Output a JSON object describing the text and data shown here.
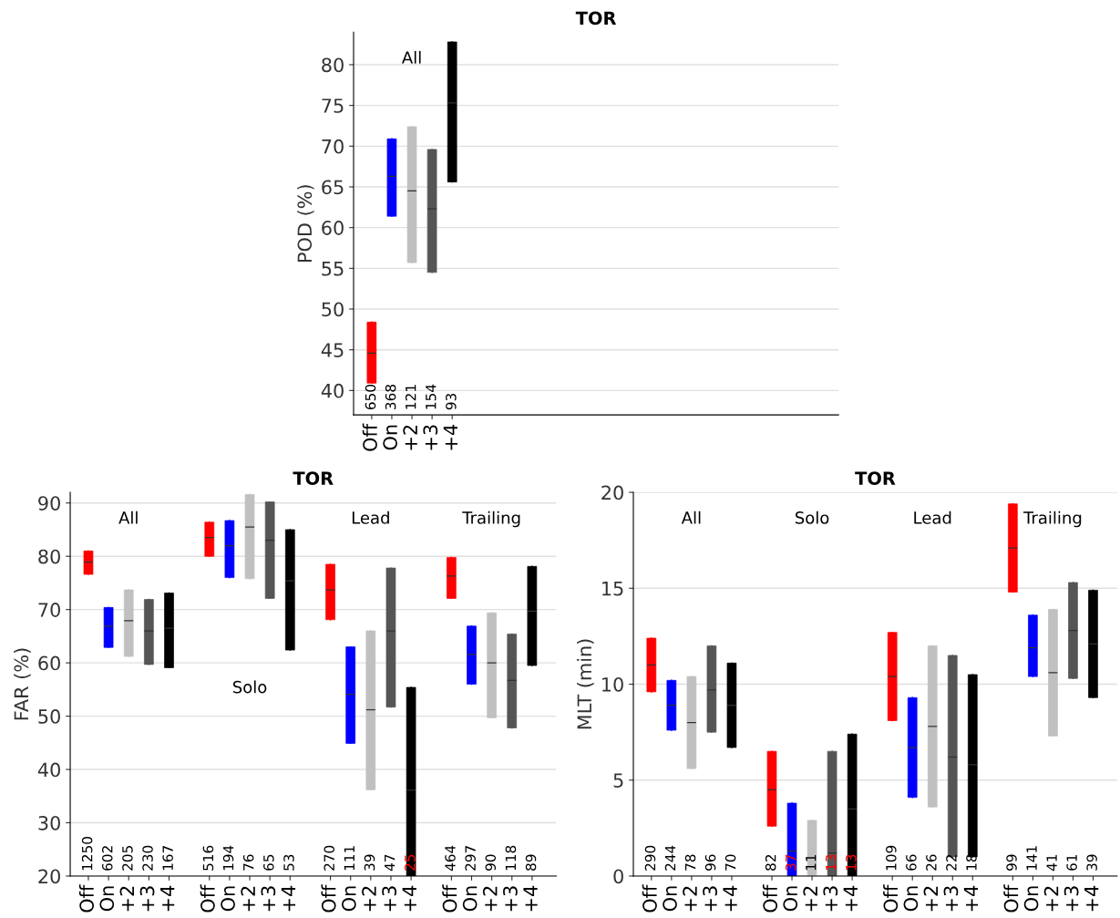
{
  "chart_data": [
    {
      "type": "box",
      "title": "TOR",
      "ylabel": "POD (%)",
      "ylim": [
        37,
        84
      ],
      "yticks": [
        40,
        45,
        50,
        55,
        60,
        65,
        70,
        75,
        80
      ],
      "grid": "y",
      "categories": [
        "Off",
        "On",
        "+2",
        "+3",
        "+4",
        null,
        null,
        null,
        null,
        null,
        null,
        null,
        null,
        null,
        null,
        null,
        null,
        null,
        null,
        null,
        null,
        null,
        null
      ],
      "colors": [
        "#ff0000",
        "#0000ff",
        "#c0c0c0",
        "#555555",
        "#000000",
        null,
        null,
        null,
        null,
        null,
        null,
        null,
        null,
        null,
        null,
        null,
        null,
        null,
        null,
        null,
        null,
        null,
        null
      ],
      "value_labels": [
        "650",
        "368",
        "121",
        "154",
        "93",
        null,
        null,
        null,
        null,
        null,
        null,
        null,
        null,
        null,
        null,
        null,
        null,
        null,
        null,
        null,
        null,
        null,
        null
      ],
      "annotations": [
        "All"
      ],
      "boxes": [
        {
          "low": 40.9,
          "q1": 40.9,
          "median": 44.6,
          "q3": 48.4,
          "high": 48.4
        },
        {
          "low": 61.4,
          "q1": 61.4,
          "median": 66.3,
          "q3": 70.9,
          "high": 70.9
        },
        {
          "low": 55.7,
          "q1": 55.7,
          "median": 64.5,
          "q3": 72.4,
          "high": 72.4
        },
        {
          "low": 54.5,
          "q1": 54.5,
          "median": 62.3,
          "q3": 69.6,
          "high": 69.6
        },
        {
          "low": 65.6,
          "q1": 65.6,
          "median": 75.3,
          "q3": 82.8,
          "high": 82.8
        },
        null,
        null,
        null,
        null,
        null,
        null,
        null,
        null,
        null,
        null,
        null,
        null,
        null,
        null,
        null,
        null,
        null,
        null
      ]
    },
    {
      "type": "box",
      "title": "TOR",
      "ylabel": "FAR (%)",
      "ylim": [
        20,
        92
      ],
      "yticks": [
        20,
        30,
        40,
        50,
        60,
        70,
        80,
        90
      ],
      "grid": "y",
      "categories": [
        "Off",
        "On",
        "+2",
        "+3",
        "+4",
        null,
        "Off",
        "On",
        "+2",
        "+3",
        "+4",
        null,
        "Off",
        "On",
        "+2",
        "+3",
        "+4",
        null,
        "Off",
        "On",
        "+2",
        "+3",
        "+4"
      ],
      "colors": [
        "#ff0000",
        "#0000ff",
        "#c0c0c0",
        "#555555",
        "#000000",
        null,
        "#ff0000",
        "#0000ff",
        "#c0c0c0",
        "#555555",
        "#000000",
        null,
        "#ff0000",
        "#0000ff",
        "#c0c0c0",
        "#555555",
        "#000000",
        null,
        "#ff0000",
        "#0000ff",
        "#c0c0c0",
        "#555555",
        "#000000"
      ],
      "value_labels": [
        "1250",
        "602",
        "205",
        "230",
        "167",
        null,
        "516",
        "194",
        "76",
        "65",
        "53",
        null,
        "270",
        "111",
        "39",
        "47",
        "25",
        null,
        "464",
        "297",
        "90",
        "118",
        "89"
      ],
      "annotations": [
        "All",
        "Solo",
        "Lead",
        "Trailing"
      ],
      "boxes": [
        {
          "low": 76.6,
          "q1": 76.6,
          "median": 78.9,
          "q3": 81.0,
          "high": 81.0
        },
        {
          "low": 62.9,
          "q1": 62.9,
          "median": 66.9,
          "q3": 70.4,
          "high": 70.4
        },
        {
          "low": 61.2,
          "q1": 61.2,
          "median": 67.9,
          "q3": 73.7,
          "high": 73.7
        },
        {
          "low": 59.7,
          "q1": 59.7,
          "median": 66.0,
          "q3": 71.9,
          "high": 71.9
        },
        {
          "low": 59.1,
          "q1": 59.1,
          "median": 66.5,
          "q3": 73.1,
          "high": 73.1
        },
        null,
        {
          "low": 80.0,
          "q1": 80.0,
          "median": 83.5,
          "q3": 86.4,
          "high": 86.4
        },
        {
          "low": 76.0,
          "q1": 76.0,
          "median": 82.0,
          "q3": 86.7,
          "high": 86.7
        },
        {
          "low": 75.8,
          "q1": 75.8,
          "median": 85.5,
          "q3": 91.6,
          "high": 91.6
        },
        {
          "low": 72.1,
          "q1": 72.1,
          "median": 83.0,
          "q3": 90.2,
          "high": 90.2
        },
        {
          "low": 62.4,
          "q1": 62.4,
          "median": 75.4,
          "q3": 85.0,
          "high": 85.0
        },
        null,
        {
          "low": 68.1,
          "q1": 68.1,
          "median": 73.7,
          "q3": 78.5,
          "high": 78.5
        },
        {
          "low": 44.9,
          "q1": 44.9,
          "median": 54.1,
          "q3": 63.0,
          "high": 63.0
        },
        {
          "low": 36.2,
          "q1": 36.2,
          "median": 51.2,
          "q3": 66.0,
          "high": 66.0
        },
        {
          "low": 51.7,
          "q1": 51.7,
          "median": 66.0,
          "q3": 77.8,
          "high": 77.8
        },
        {
          "low": 20.0,
          "q1": 20.0,
          "median": 36.1,
          "q3": 55.4,
          "high": 55.4
        },
        null,
        {
          "low": 72.1,
          "q1": 72.1,
          "median": 76.3,
          "q3": 79.8,
          "high": 79.8
        },
        {
          "low": 56.0,
          "q1": 56.0,
          "median": 61.6,
          "q3": 66.9,
          "high": 66.9
        },
        {
          "low": 49.7,
          "q1": 49.7,
          "median": 60.0,
          "q3": 69.4,
          "high": 69.4
        },
        {
          "low": 47.8,
          "q1": 47.8,
          "median": 56.7,
          "q3": 65.4,
          "high": 65.4
        },
        {
          "low": 59.5,
          "q1": 59.5,
          "median": 69.7,
          "q3": 78.1,
          "high": 78.1
        }
      ]
    },
    {
      "type": "box",
      "title": "TOR",
      "ylabel": "MLT (min)",
      "ylim": [
        0,
        20
      ],
      "yticks": [
        0,
        5,
        10,
        15,
        20
      ],
      "grid": "y",
      "categories": [
        "Off",
        "On",
        "+2",
        "+3",
        "+4",
        null,
        "Off",
        "On",
        "+2",
        "+3",
        "+4",
        null,
        "Off",
        "On",
        "+2",
        "+3",
        "+4",
        null,
        "Off",
        "On",
        "+2",
        "+3",
        "+4"
      ],
      "colors": [
        "#ff0000",
        "#0000ff",
        "#c0c0c0",
        "#555555",
        "#000000",
        null,
        "#ff0000",
        "#0000ff",
        "#c0c0c0",
        "#555555",
        "#000000",
        null,
        "#ff0000",
        "#0000ff",
        "#c0c0c0",
        "#555555",
        "#000000",
        null,
        "#ff0000",
        "#0000ff",
        "#c0c0c0",
        "#555555",
        "#000000"
      ],
      "value_labels": [
        "290",
        "244",
        "78",
        "96",
        "70",
        null,
        "82",
        "37",
        "11",
        "13",
        "13",
        null,
        "109",
        "66",
        "26",
        "22",
        "18",
        null,
        "99",
        "141",
        "41",
        "61",
        "39"
      ],
      "annotations": [
        "All",
        "Solo",
        "Lead",
        "Trailing"
      ],
      "boxes": [
        {
          "low": 9.6,
          "q1": 9.6,
          "median": 11.0,
          "q3": 12.4,
          "high": 12.4
        },
        {
          "low": 7.6,
          "q1": 7.6,
          "median": 8.9,
          "q3": 10.2,
          "high": 10.2
        },
        {
          "low": 5.6,
          "q1": 5.6,
          "median": 8.0,
          "q3": 10.4,
          "high": 10.4
        },
        {
          "low": 7.5,
          "q1": 7.5,
          "median": 9.7,
          "q3": 12.0,
          "high": 12.0
        },
        {
          "low": 6.7,
          "q1": 6.7,
          "median": 8.9,
          "q3": 11.1,
          "high": 11.1
        },
        null,
        {
          "low": 2.6,
          "q1": 2.6,
          "median": 4.5,
          "q3": 6.5,
          "high": 6.5
        },
        {
          "low": 0,
          "q1": 0,
          "median": 1.3,
          "q3": 3.8,
          "high": 3.8
        },
        {
          "low": 0,
          "q1": 0,
          "median": null,
          "q3": 2.9,
          "high": 2.9
        },
        {
          "low": 0,
          "q1": 0,
          "median": 1.2,
          "q3": 6.5,
          "high": 6.5
        },
        {
          "low": 0,
          "q1": 0,
          "median": 3.5,
          "q3": 7.4,
          "high": 7.4
        },
        null,
        {
          "low": 8.1,
          "q1": 8.1,
          "median": 10.4,
          "q3": 12.7,
          "high": 12.7
        },
        {
          "low": 4.1,
          "q1": 4.1,
          "median": 6.7,
          "q3": 9.3,
          "high": 9.3
        },
        {
          "low": 3.6,
          "q1": 3.6,
          "median": 7.8,
          "q3": 12.0,
          "high": 12.0
        },
        {
          "low": 1.0,
          "q1": 1.0,
          "median": 6.2,
          "q3": 11.5,
          "high": 11.5
        },
        {
          "low": 1.0,
          "q1": 1.0,
          "median": 5.8,
          "q3": 10.5,
          "high": 10.5
        },
        null,
        {
          "low": 14.8,
          "q1": 14.8,
          "median": 17.1,
          "q3": 19.4,
          "high": 19.4
        },
        {
          "low": 10.4,
          "q1": 10.4,
          "median": 11.9,
          "q3": 13.6,
          "high": 13.6
        },
        {
          "low": 7.3,
          "q1": 7.3,
          "median": 10.6,
          "q3": 13.9,
          "high": 13.9
        },
        {
          "low": 10.3,
          "q1": 10.3,
          "median": 12.8,
          "q3": 15.3,
          "high": 15.3
        },
        {
          "low": 9.3,
          "q1": 9.3,
          "median": 12.1,
          "q3": 14.9,
          "high": 14.9
        }
      ]
    }
  ]
}
